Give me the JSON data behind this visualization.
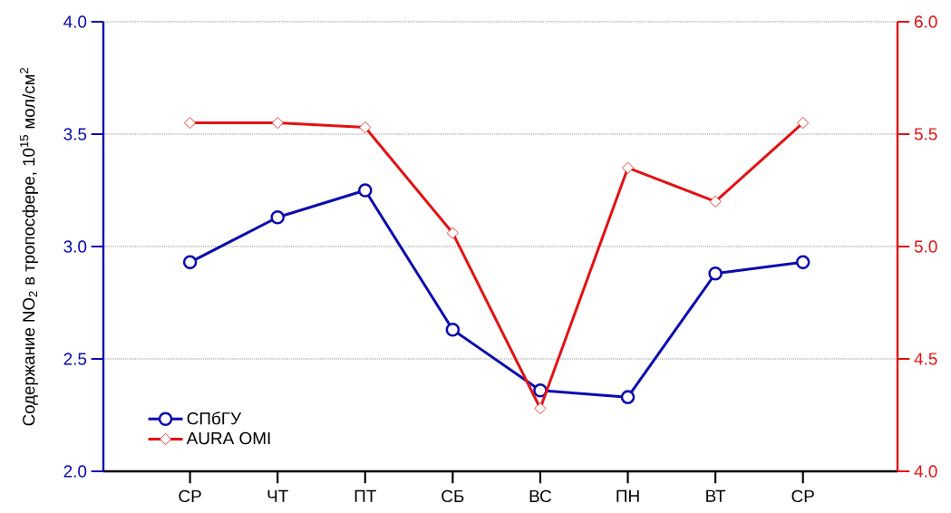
{
  "chart_data": {
    "type": "line",
    "ylabel": "Содержание NO$_{2}$ в тропосфере, 10$^{15}$ мол/см$^{2}$",
    "categories": [
      "СР",
      "ЧТ",
      "ПТ",
      "СБ",
      "ВС",
      "ПН",
      "ВТ",
      "СР"
    ],
    "ylim": [
      2.0,
      4.0
    ],
    "yticks": [
      {
        "value": 2.0,
        "label": "2.0"
      },
      2.5,
      {
        "value": 3.0,
        "label": "3.0"
      },
      3.5,
      {
        "value": 4.0,
        "label": "4.0"
      }
    ],
    "y2lim": [
      4.0,
      6.0
    ],
    "y2ticks": [
      {
        "value": 4.0,
        "label": "4.0"
      },
      4.5,
      {
        "value": 5.0,
        "label": "5.0"
      },
      5.5,
      {
        "value": 6.0,
        "label": "6.0"
      }
    ],
    "grid": "y",
    "legend": "bottom left",
    "series": [
      {
        "name": "СПбГУ",
        "color": "#0c0cae",
        "marker": "circle",
        "values": [
          2.93,
          3.13,
          3.25,
          2.63,
          2.36,
          2.33,
          2.88,
          2.93
        ]
      },
      {
        "name": "AURA OMI",
        "color": "#e31212",
        "marker": "diamond",
        "axis": "y2",
        "values": [
          5.55,
          5.55,
          5.53,
          5.06,
          4.28,
          5.35,
          5.2,
          5.55
        ]
      }
    ]
  }
}
